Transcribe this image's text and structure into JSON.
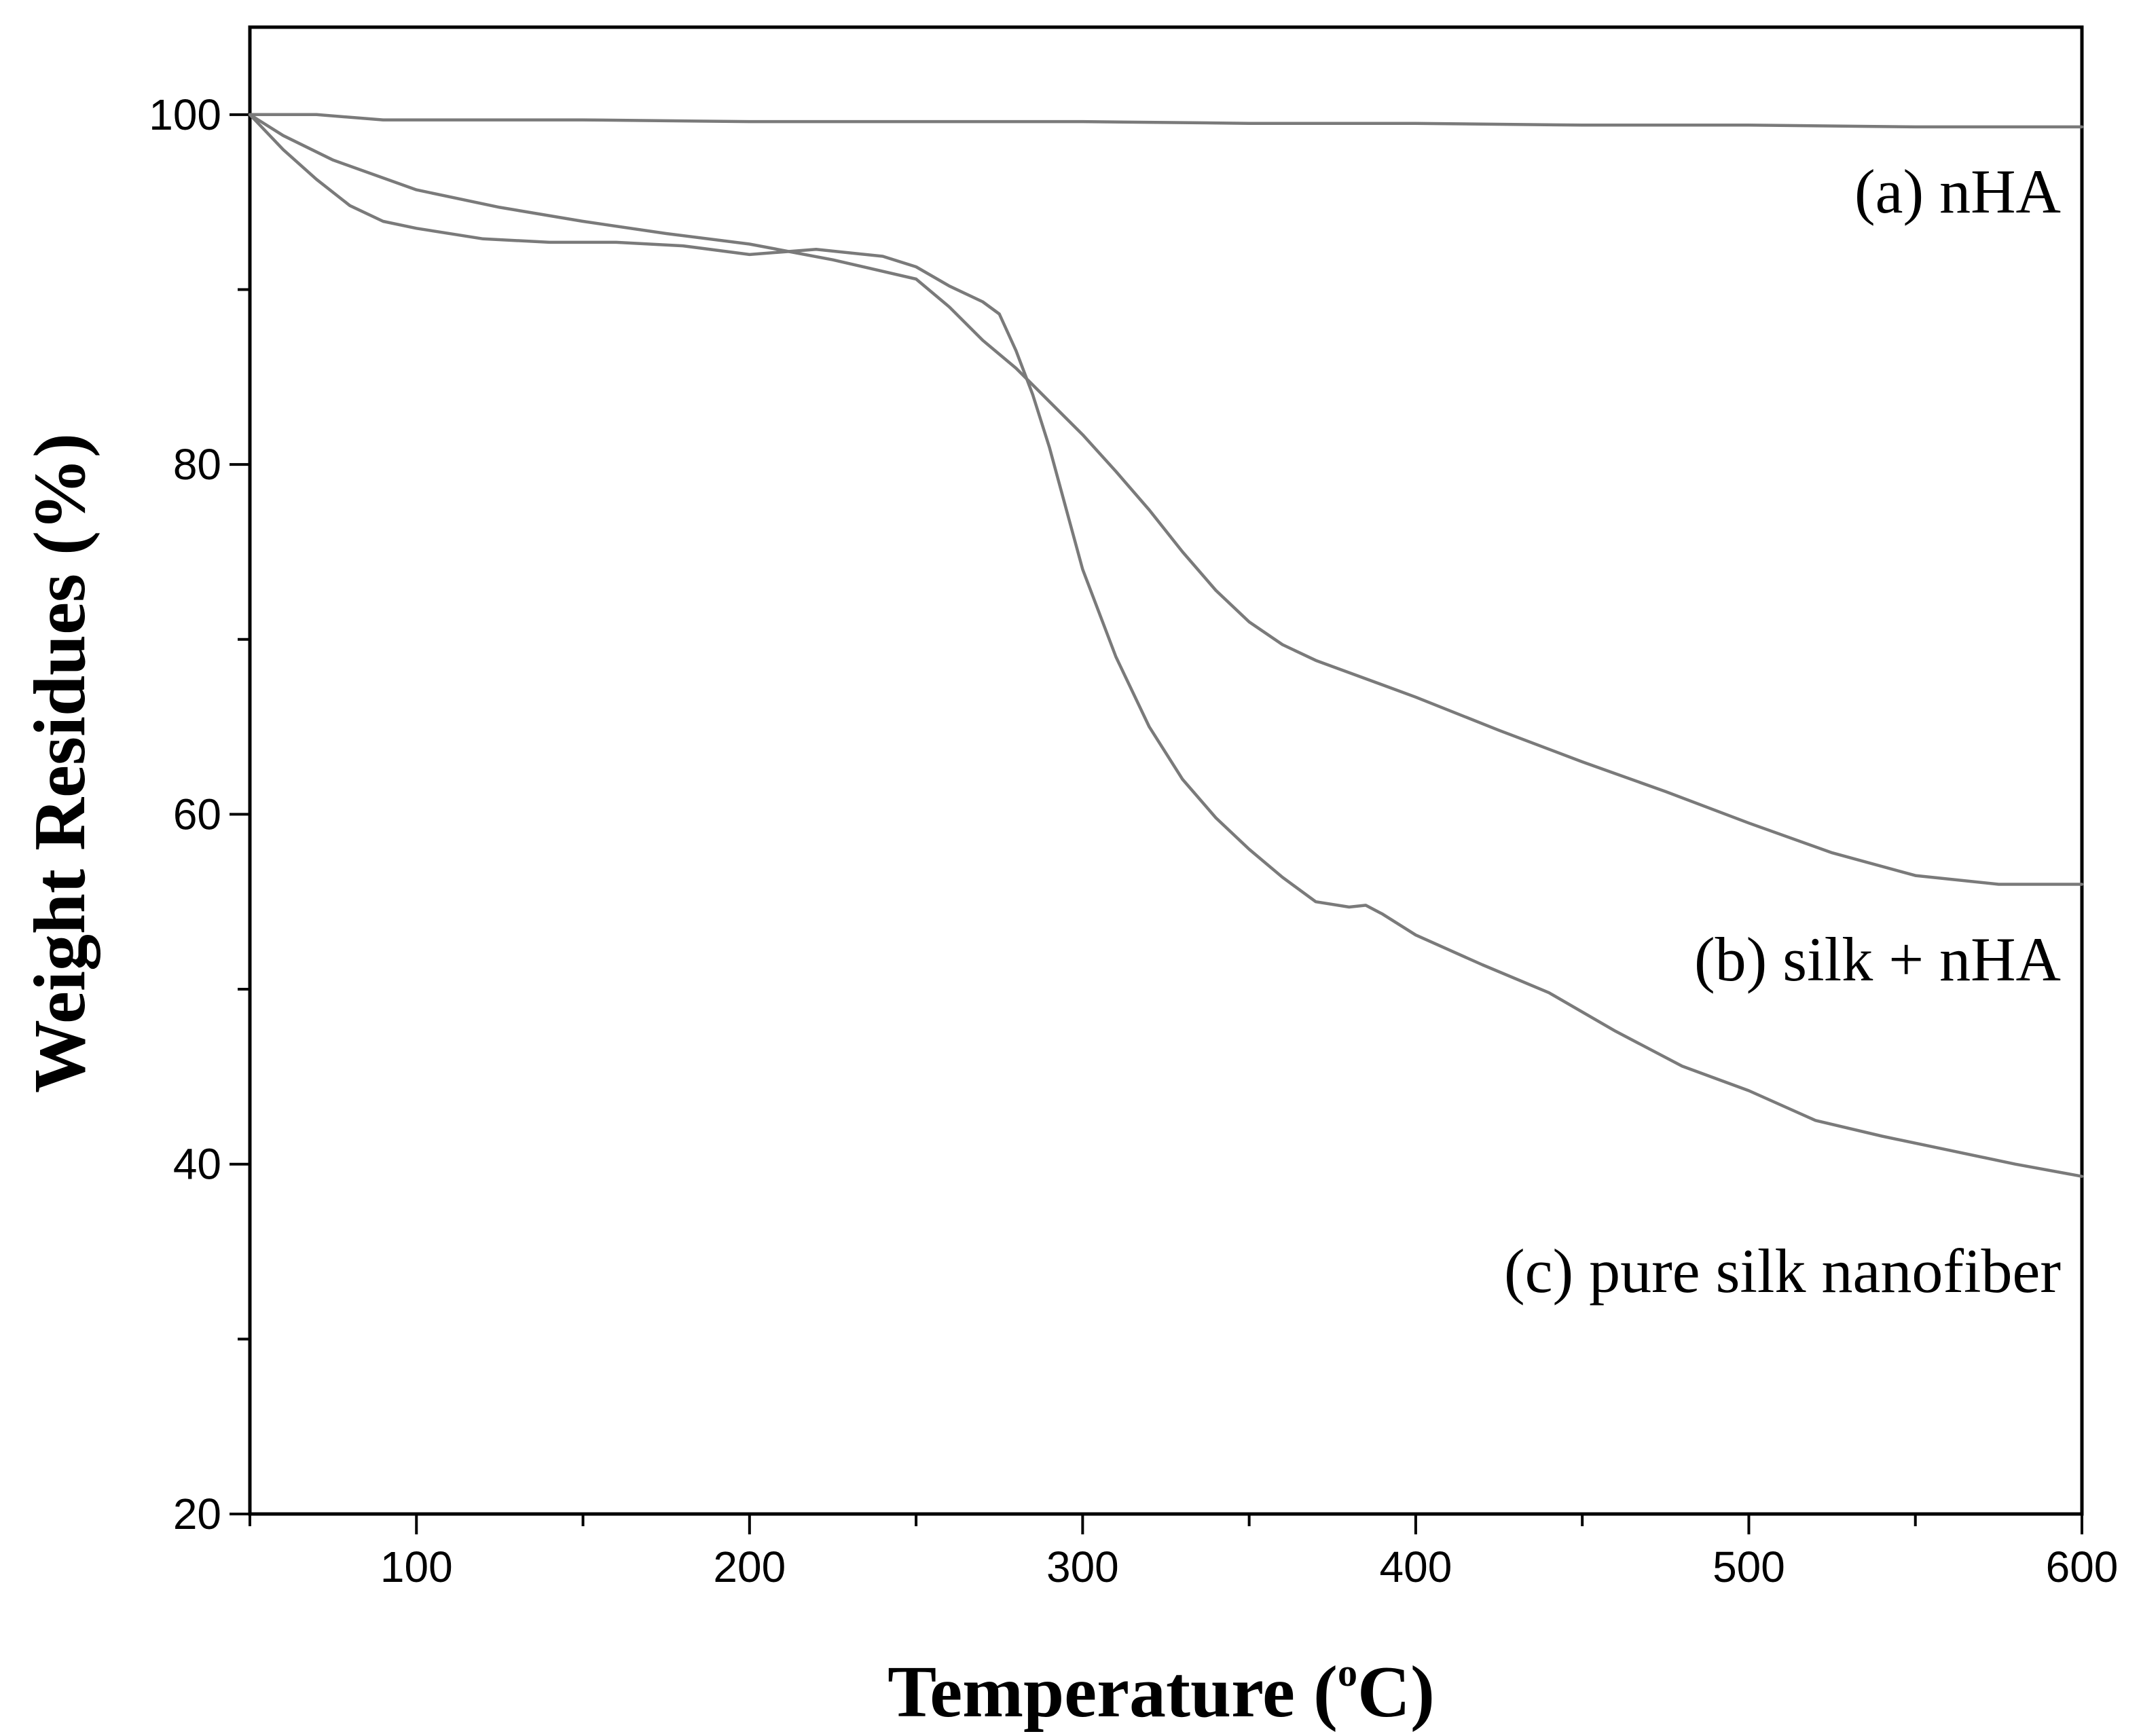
{
  "chart_data": {
    "type": "line",
    "title": "",
    "xlabel": "Temperature (",
    "xlabel_degree": "o",
    "xlabel_unit": "C)",
    "ylabel": "Weight Residues (%)",
    "xlim": [
      50,
      600
    ],
    "ylim": [
      20,
      105
    ],
    "x_ticks": [
      100,
      200,
      300,
      400,
      500,
      600
    ],
    "x_tick_labels": [
      "100",
      "200",
      "300",
      "400",
      "500",
      "600"
    ],
    "x_minor_ticks": [
      50,
      150,
      250,
      350,
      450,
      550
    ],
    "y_ticks": [
      20,
      40,
      60,
      80,
      100
    ],
    "y_tick_labels": [
      "20",
      "40",
      "60",
      "80",
      "100"
    ],
    "y_minor_ticks": [
      30,
      50,
      70,
      90
    ],
    "grid": false,
    "line_color": "#7a7a7a",
    "series": [
      {
        "name": "(a) nHA",
        "x": [
          50,
          70,
          90,
          120,
          150,
          200,
          250,
          300,
          350,
          400,
          450,
          500,
          550,
          600
        ],
        "y": [
          100,
          100,
          99.7,
          99.7,
          99.7,
          99.6,
          99.6,
          99.6,
          99.5,
          99.5,
          99.4,
          99.4,
          99.3,
          99.3
        ]
      },
      {
        "name": "(b) silk + nHA",
        "x": [
          50,
          60,
          75,
          100,
          125,
          150,
          175,
          200,
          225,
          250,
          260,
          270,
          280,
          290,
          300,
          310,
          320,
          330,
          340,
          350,
          360,
          370,
          380,
          400,
          425,
          450,
          475,
          500,
          525,
          550,
          575,
          600
        ],
        "y": [
          100,
          98.8,
          97.4,
          95.7,
          94.7,
          93.9,
          93.2,
          92.6,
          91.7,
          90.6,
          89.0,
          87.1,
          85.5,
          83.6,
          81.7,
          79.6,
          77.4,
          75.0,
          72.8,
          71.0,
          69.7,
          68.8,
          68.1,
          66.7,
          64.8,
          63.0,
          61.3,
          59.5,
          57.8,
          56.5,
          56.0,
          56.0
        ]
      },
      {
        "name": "(c) pure silk nanofiber",
        "x": [
          50,
          60,
          70,
          80,
          90,
          100,
          120,
          140,
          160,
          180,
          200,
          220,
          240,
          250,
          260,
          270,
          275,
          280,
          285,
          290,
          295,
          300,
          310,
          320,
          330,
          340,
          350,
          360,
          370,
          380,
          385,
          390,
          400,
          420,
          440,
          460,
          480,
          500,
          520,
          540,
          560,
          580,
          600
        ],
        "y": [
          100,
          98.0,
          96.3,
          94.8,
          93.9,
          93.5,
          92.9,
          92.7,
          92.7,
          92.5,
          92.0,
          92.3,
          91.9,
          91.3,
          90.2,
          89.3,
          88.6,
          86.5,
          84.0,
          81.0,
          77.5,
          74.0,
          69.0,
          65.0,
          62.0,
          59.8,
          58.0,
          56.4,
          55.0,
          54.7,
          54.8,
          54.3,
          53.1,
          51.4,
          49.8,
          47.6,
          45.6,
          44.2,
          42.5,
          41.6,
          40.8,
          40.0,
          39.3
        ]
      }
    ]
  }
}
